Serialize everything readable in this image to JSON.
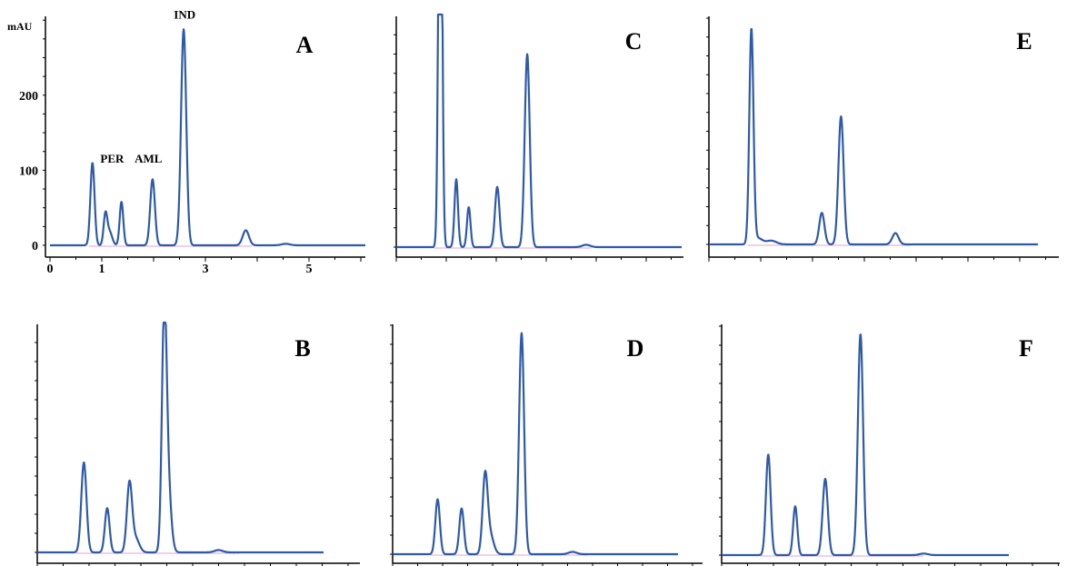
{
  "colors": {
    "trace": "#2f5aa8",
    "axis": "#000000",
    "baseline_marker": "#e080c0"
  },
  "chart_data": [
    {
      "panel": "A",
      "type": "line",
      "ylabel": "mAU",
      "xlim": [
        0,
        6.2
      ],
      "ylim": [
        -5,
        300
      ],
      "xticks": [
        0,
        1,
        3,
        5
      ],
      "yticks": [
        0,
        100,
        200
      ],
      "baseline": 5,
      "peaks": [
        {
          "x": 0.82,
          "h": 110,
          "w": 0.04
        },
        {
          "x": 1.07,
          "h": 40,
          "w": 0.035
        },
        {
          "x": 1.15,
          "h": 18,
          "w": 0.05
        },
        {
          "x": 1.38,
          "h": 58,
          "w": 0.035
        },
        {
          "x": 1.98,
          "h": 88,
          "w": 0.045
        },
        {
          "x": 2.58,
          "h": 288,
          "w": 0.05
        },
        {
          "x": 3.78,
          "h": 20,
          "w": 0.06
        },
        {
          "x": 4.55,
          "h": 2,
          "w": 0.08
        }
      ],
      "annotations": [
        {
          "text": "PER",
          "x": 1.2,
          "y": 110
        },
        {
          "text": "AML",
          "x": 1.9,
          "y": 110
        },
        {
          "text": "IND",
          "x": 2.6,
          "y": 302
        }
      ]
    },
    {
      "panel": "B",
      "type": "line",
      "xlim": [
        0,
        6.2
      ],
      "ylim": [
        -5,
        300
      ],
      "baseline": 2,
      "peaks": [
        {
          "x": 0.9,
          "h": 118,
          "w": 0.05
        },
        {
          "x": 1.35,
          "h": 58,
          "w": 0.045
        },
        {
          "x": 1.78,
          "h": 90,
          "w": 0.05
        },
        {
          "x": 1.9,
          "h": 18,
          "w": 0.07
        },
        {
          "x": 2.45,
          "h": 290,
          "w": 0.045
        },
        {
          "x": 2.52,
          "h": 90,
          "w": 0.06
        },
        {
          "x": 3.5,
          "h": 3,
          "w": 0.08
        }
      ]
    },
    {
      "panel": "C",
      "type": "line",
      "xlim": [
        0,
        6.2
      ],
      "ylim": [
        -5,
        300
      ],
      "baseline": 2,
      "peaks": [
        {
          "x": 0.88,
          "h": 700,
          "w": 0.035
        },
        {
          "x": 1.2,
          "h": 88,
          "w": 0.035
        },
        {
          "x": 1.45,
          "h": 52,
          "w": 0.035
        },
        {
          "x": 2.02,
          "h": 78,
          "w": 0.045
        },
        {
          "x": 2.62,
          "h": 250,
          "w": 0.05
        },
        {
          "x": 3.8,
          "h": 3,
          "w": 0.08
        }
      ]
    },
    {
      "panel": "D",
      "type": "line",
      "xlim": [
        0,
        6.2
      ],
      "ylim": [
        -5,
        300
      ],
      "baseline": 2,
      "peaks": [
        {
          "x": 0.9,
          "h": 72,
          "w": 0.045
        },
        {
          "x": 1.38,
          "h": 60,
          "w": 0.045
        },
        {
          "x": 1.85,
          "h": 100,
          "w": 0.05
        },
        {
          "x": 1.95,
          "h": 25,
          "w": 0.07
        },
        {
          "x": 2.58,
          "h": 290,
          "w": 0.05
        },
        {
          "x": 3.6,
          "h": 3,
          "w": 0.08
        }
      ]
    },
    {
      "panel": "E",
      "type": "line",
      "xlim": [
        0,
        6.2
      ],
      "ylim": [
        -5,
        300
      ],
      "baseline": 5,
      "peaks": [
        {
          "x": 0.82,
          "h": 285,
          "w": 0.04
        },
        {
          "x": 0.95,
          "h": 8,
          "w": 0.08
        },
        {
          "x": 1.2,
          "h": 5,
          "w": 0.1
        },
        {
          "x": 2.18,
          "h": 42,
          "w": 0.05
        },
        {
          "x": 2.55,
          "h": 170,
          "w": 0.05
        },
        {
          "x": 3.6,
          "h": 15,
          "w": 0.06
        }
      ]
    },
    {
      "panel": "F",
      "type": "line",
      "xlim": [
        0,
        6.2
      ],
      "ylim": [
        -5,
        300
      ],
      "baseline": 2,
      "peaks": [
        {
          "x": 0.9,
          "h": 132,
          "w": 0.045
        },
        {
          "x": 1.42,
          "h": 64,
          "w": 0.04
        },
        {
          "x": 2.0,
          "h": 100,
          "w": 0.05
        },
        {
          "x": 2.68,
          "h": 290,
          "w": 0.05
        },
        {
          "x": 3.9,
          "h": 2,
          "w": 0.08
        }
      ]
    }
  ]
}
